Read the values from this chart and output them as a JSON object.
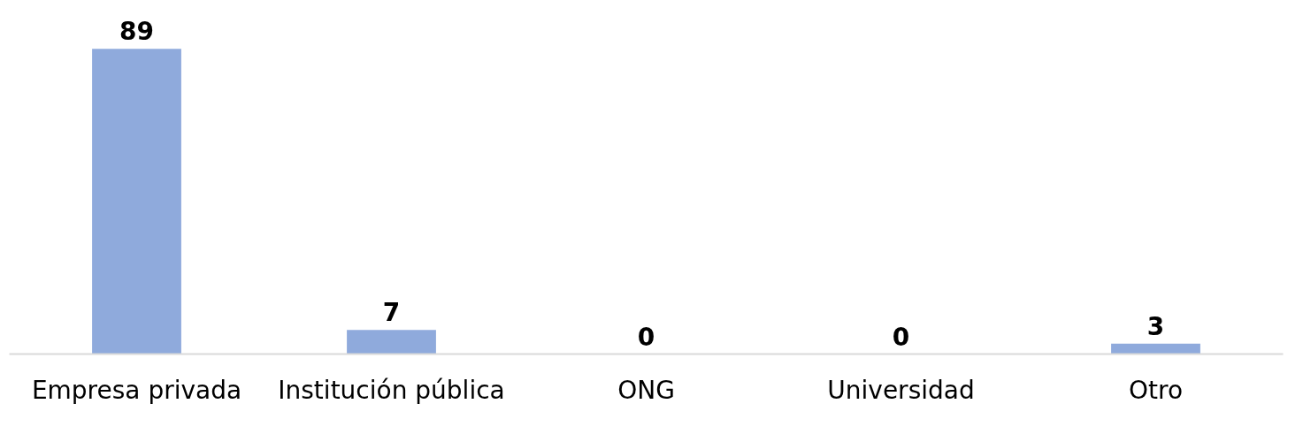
{
  "chart_data": {
    "type": "bar",
    "categories": [
      "Empresa privada",
      "Institución pública",
      "ONG",
      "Universidad",
      "Otro"
    ],
    "values": [
      89,
      7,
      0,
      0,
      3
    ],
    "color": "#8faadc",
    "data_labels": true
  }
}
